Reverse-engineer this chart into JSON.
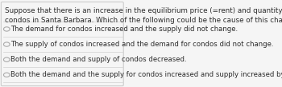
{
  "question": "Suppose that there is an increase in the equilibrium price (=rent) and quantity (=units rented) of\ncondos in Santa Barbara. Which of the following could be the cause of this change?",
  "options": [
    "The demand for condos increased and the supply did not change.",
    "The supply of condos increased and the demand for condos did not change.",
    "Both the demand and supply of condos decreased.",
    "Both the demand and the supply for condos increased and supply increased by more than the demand."
  ],
  "bg_color": "#f5f5f5",
  "border_color": "#cccccc",
  "text_color": "#2c2c2c",
  "divider_color": "#d0d0d0",
  "radio_color": "#aaaaaa",
  "question_fontsize": 6.3,
  "option_fontsize": 6.1
}
